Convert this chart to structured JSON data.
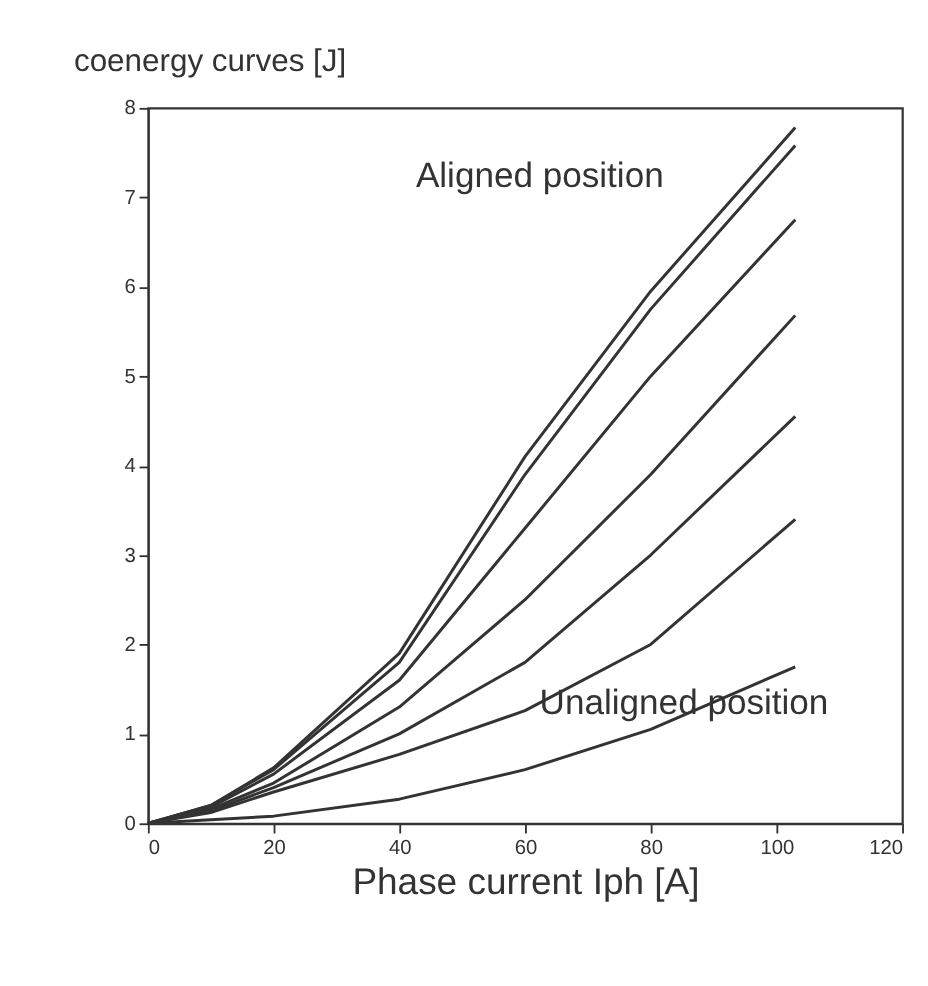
{
  "chart_data": {
    "type": "line",
    "title": "coenergy curves [J]",
    "xlabel": "Phase current Iph [A]",
    "xlim": [
      0,
      120
    ],
    "xticks": [
      0,
      20,
      40,
      60,
      80,
      100,
      120
    ],
    "ylim": [
      0,
      8
    ],
    "yticks": [
      0,
      1,
      2,
      3,
      4,
      5,
      6,
      7,
      8
    ],
    "grid": false,
    "legend": false,
    "line_style": "solid",
    "marker": "none",
    "series": [
      {
        "color": "#333333",
        "x": [
          0,
          10,
          20,
          40,
          60,
          80,
          103
        ],
        "values": [
          0,
          0.2,
          0.62,
          1.9,
          4.1,
          5.95,
          7.78
        ]
      },
      {
        "color": "#333333",
        "x": [
          0,
          10,
          20,
          40,
          60,
          80,
          103
        ],
        "values": [
          0,
          0.2,
          0.6,
          1.8,
          3.9,
          5.75,
          7.58
        ]
      },
      {
        "color": "#333333",
        "x": [
          0,
          10,
          20,
          40,
          60,
          80,
          103
        ],
        "values": [
          0,
          0.18,
          0.55,
          1.6,
          3.3,
          5.0,
          6.75
        ]
      },
      {
        "color": "#333333",
        "x": [
          0,
          10,
          20,
          40,
          60,
          80,
          103
        ],
        "values": [
          0,
          0.16,
          0.45,
          1.3,
          2.5,
          3.9,
          5.68
        ]
      },
      {
        "color": "#333333",
        "x": [
          0,
          10,
          20,
          40,
          60,
          80,
          103
        ],
        "values": [
          0,
          0.14,
          0.4,
          1.0,
          1.8,
          3.0,
          4.55
        ]
      },
      {
        "color": "#333333",
        "x": [
          0,
          10,
          20,
          40,
          60,
          80,
          103
        ],
        "values": [
          0,
          0.12,
          0.35,
          0.77,
          1.26,
          2.0,
          3.4
        ]
      },
      {
        "color": "#333333",
        "x": [
          0,
          20,
          40,
          60,
          80,
          103
        ],
        "values": [
          0,
          0.08,
          0.27,
          0.6,
          1.05,
          1.75
        ]
      }
    ],
    "annotations": [
      "Aligned position",
      "Unaligned position"
    ]
  }
}
